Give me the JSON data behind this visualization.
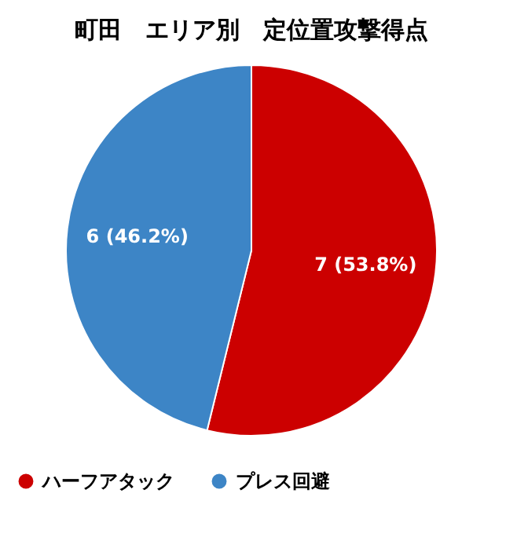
{
  "chart_data": {
    "type": "pie",
    "title": "町田　エリア別　定位置攻撃得点",
    "categories": [
      "ハーフアタック",
      "プレス回避"
    ],
    "values": [
      7,
      6
    ],
    "colors": [
      "#cc0000",
      "#3d85c6"
    ],
    "value_labels": [
      "7 (53.8%)",
      "6 (46.2%)"
    ],
    "legend": "bottom"
  }
}
